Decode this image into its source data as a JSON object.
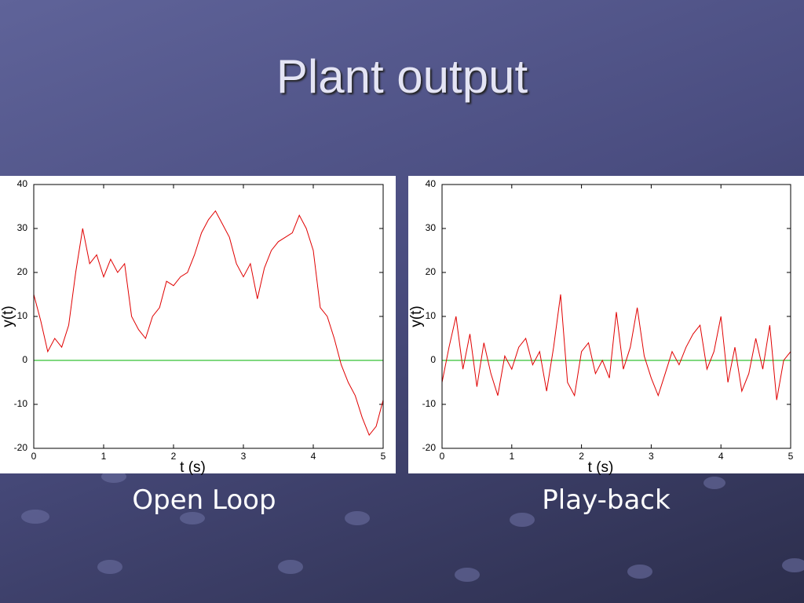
{
  "slide": {
    "title": "Plant output"
  },
  "chart_data": [
    {
      "type": "line",
      "caption": "Open Loop",
      "xlabel": "t (s)",
      "ylabel": "y(t)",
      "x": [
        0,
        0.1,
        0.2,
        0.3,
        0.4,
        0.5,
        0.6,
        0.7,
        0.8,
        0.9,
        1,
        1.1,
        1.2,
        1.3,
        1.4,
        1.5,
        1.6,
        1.7,
        1.8,
        1.9,
        2,
        2.1,
        2.2,
        2.3,
        2.4,
        2.5,
        2.6,
        2.7,
        2.8,
        2.9,
        3,
        3.1,
        3.2,
        3.3,
        3.4,
        3.5,
        3.6,
        3.7,
        3.8,
        3.9,
        4,
        4.1,
        4.2,
        4.3,
        4.4,
        4.5,
        4.6,
        4.7,
        4.8,
        4.9,
        5
      ],
      "series": [
        {
          "color": "#e00000",
          "values": [
            15,
            9,
            2,
            5,
            3,
            8,
            20,
            30,
            22,
            24,
            19,
            23,
            20,
            22,
            10,
            7,
            5,
            10,
            12,
            18,
            17,
            19,
            20,
            24,
            29,
            32,
            34,
            31,
            28,
            22,
            19,
            22,
            14,
            21,
            25,
            27,
            28,
            29,
            33,
            30,
            25,
            12,
            10,
            5,
            -1,
            -5,
            -8,
            -13,
            -17,
            -15,
            -9
          ]
        }
      ],
      "reference_line": {
        "value": 0,
        "color": "#00b000"
      },
      "xlim": [
        0,
        5
      ],
      "xticks": [
        0,
        1,
        2,
        3,
        4,
        5
      ],
      "ylim": [
        -20,
        40
      ],
      "yticks": [
        -20,
        -10,
        0,
        10,
        20,
        30,
        40
      ]
    },
    {
      "type": "line",
      "caption": "Play-back",
      "xlabel": "t (s)",
      "ylabel": "y(t)",
      "x": [
        0,
        0.1,
        0.2,
        0.3,
        0.4,
        0.5,
        0.6,
        0.7,
        0.8,
        0.9,
        1,
        1.1,
        1.2,
        1.3,
        1.4,
        1.5,
        1.6,
        1.7,
        1.8,
        1.9,
        2,
        2.1,
        2.2,
        2.3,
        2.4,
        2.5,
        2.6,
        2.7,
        2.8,
        2.9,
        3,
        3.1,
        3.2,
        3.3,
        3.4,
        3.5,
        3.6,
        3.7,
        3.8,
        3.9,
        4,
        4.1,
        4.2,
        4.3,
        4.4,
        4.5,
        4.6,
        4.7,
        4.8,
        4.9,
        5
      ],
      "series": [
        {
          "color": "#e00000",
          "values": [
            -5,
            3,
            10,
            -2,
            6,
            -6,
            4,
            -3,
            -8,
            1,
            -2,
            3,
            5,
            -1,
            2,
            -7,
            3,
            15,
            -5,
            -8,
            2,
            4,
            -3,
            0,
            -4,
            11,
            -2,
            3,
            12,
            1,
            -4,
            -8,
            -3,
            2,
            -1,
            3,
            6,
            8,
            -2,
            2,
            10,
            -5,
            3,
            -7,
            -3,
            5,
            -2,
            8,
            -9,
            0,
            2
          ]
        }
      ],
      "reference_line": {
        "value": 0,
        "color": "#00b000"
      },
      "xlim": [
        0,
        5
      ],
      "xticks": [
        0,
        1,
        2,
        3,
        4,
        5
      ],
      "ylim": [
        -20,
        40
      ],
      "yticks": [
        -20,
        -10,
        0,
        10,
        20,
        30,
        40
      ]
    }
  ]
}
